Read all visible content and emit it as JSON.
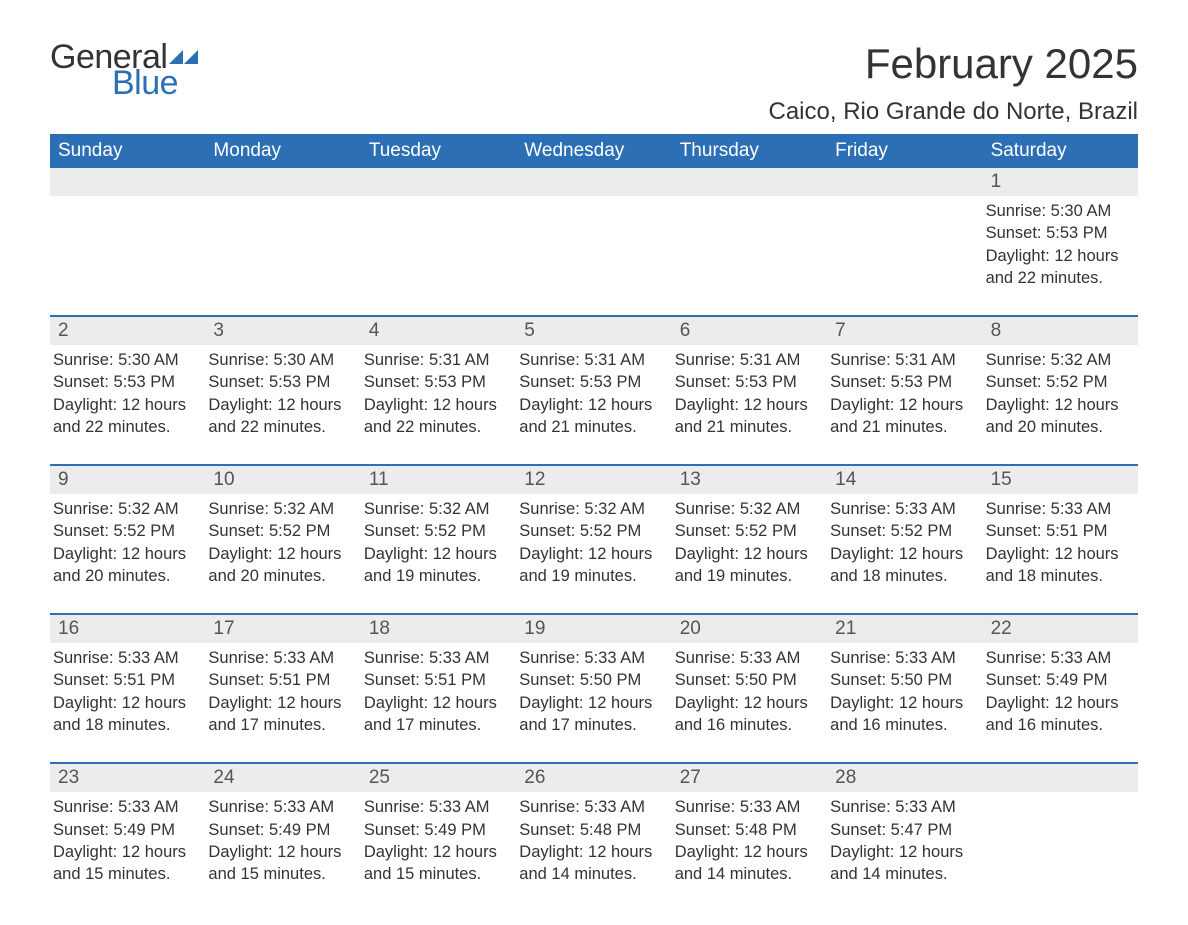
{
  "logo": {
    "general": "General",
    "blue": "Blue"
  },
  "header": {
    "month_title": "February 2025",
    "location": "Caico, Rio Grande do Norte, Brazil"
  },
  "calendar": {
    "columns": [
      "Sunday",
      "Monday",
      "Tuesday",
      "Wednesday",
      "Thursday",
      "Friday",
      "Saturday"
    ],
    "header_bg": "#2d6fb5",
    "header_fg": "#ffffff",
    "daynum_bg": "#ececec",
    "rule_color": "#2d6fb5",
    "weeks": [
      {
        "days": [
          {
            "num": "",
            "lines": []
          },
          {
            "num": "",
            "lines": []
          },
          {
            "num": "",
            "lines": []
          },
          {
            "num": "",
            "lines": []
          },
          {
            "num": "",
            "lines": []
          },
          {
            "num": "",
            "lines": []
          },
          {
            "num": "1",
            "lines": [
              "Sunrise: 5:30 AM",
              "Sunset: 5:53 PM",
              "Daylight: 12 hours and 22 minutes."
            ]
          }
        ]
      },
      {
        "days": [
          {
            "num": "2",
            "lines": [
              "Sunrise: 5:30 AM",
              "Sunset: 5:53 PM",
              "Daylight: 12 hours and 22 minutes."
            ]
          },
          {
            "num": "3",
            "lines": [
              "Sunrise: 5:30 AM",
              "Sunset: 5:53 PM",
              "Daylight: 12 hours and 22 minutes."
            ]
          },
          {
            "num": "4",
            "lines": [
              "Sunrise: 5:31 AM",
              "Sunset: 5:53 PM",
              "Daylight: 12 hours and 22 minutes."
            ]
          },
          {
            "num": "5",
            "lines": [
              "Sunrise: 5:31 AM",
              "Sunset: 5:53 PM",
              "Daylight: 12 hours and 21 minutes."
            ]
          },
          {
            "num": "6",
            "lines": [
              "Sunrise: 5:31 AM",
              "Sunset: 5:53 PM",
              "Daylight: 12 hours and 21 minutes."
            ]
          },
          {
            "num": "7",
            "lines": [
              "Sunrise: 5:31 AM",
              "Sunset: 5:53 PM",
              "Daylight: 12 hours and 21 minutes."
            ]
          },
          {
            "num": "8",
            "lines": [
              "Sunrise: 5:32 AM",
              "Sunset: 5:52 PM",
              "Daylight: 12 hours and 20 minutes."
            ]
          }
        ]
      },
      {
        "days": [
          {
            "num": "9",
            "lines": [
              "Sunrise: 5:32 AM",
              "Sunset: 5:52 PM",
              "Daylight: 12 hours and 20 minutes."
            ]
          },
          {
            "num": "10",
            "lines": [
              "Sunrise: 5:32 AM",
              "Sunset: 5:52 PM",
              "Daylight: 12 hours and 20 minutes."
            ]
          },
          {
            "num": "11",
            "lines": [
              "Sunrise: 5:32 AM",
              "Sunset: 5:52 PM",
              "Daylight: 12 hours and 19 minutes."
            ]
          },
          {
            "num": "12",
            "lines": [
              "Sunrise: 5:32 AM",
              "Sunset: 5:52 PM",
              "Daylight: 12 hours and 19 minutes."
            ]
          },
          {
            "num": "13",
            "lines": [
              "Sunrise: 5:32 AM",
              "Sunset: 5:52 PM",
              "Daylight: 12 hours and 19 minutes."
            ]
          },
          {
            "num": "14",
            "lines": [
              "Sunrise: 5:33 AM",
              "Sunset: 5:52 PM",
              "Daylight: 12 hours and 18 minutes."
            ]
          },
          {
            "num": "15",
            "lines": [
              "Sunrise: 5:33 AM",
              "Sunset: 5:51 PM",
              "Daylight: 12 hours and 18 minutes."
            ]
          }
        ]
      },
      {
        "days": [
          {
            "num": "16",
            "lines": [
              "Sunrise: 5:33 AM",
              "Sunset: 5:51 PM",
              "Daylight: 12 hours and 18 minutes."
            ]
          },
          {
            "num": "17",
            "lines": [
              "Sunrise: 5:33 AM",
              "Sunset: 5:51 PM",
              "Daylight: 12 hours and 17 minutes."
            ]
          },
          {
            "num": "18",
            "lines": [
              "Sunrise: 5:33 AM",
              "Sunset: 5:51 PM",
              "Daylight: 12 hours and 17 minutes."
            ]
          },
          {
            "num": "19",
            "lines": [
              "Sunrise: 5:33 AM",
              "Sunset: 5:50 PM",
              "Daylight: 12 hours and 17 minutes."
            ]
          },
          {
            "num": "20",
            "lines": [
              "Sunrise: 5:33 AM",
              "Sunset: 5:50 PM",
              "Daylight: 12 hours and 16 minutes."
            ]
          },
          {
            "num": "21",
            "lines": [
              "Sunrise: 5:33 AM",
              "Sunset: 5:50 PM",
              "Daylight: 12 hours and 16 minutes."
            ]
          },
          {
            "num": "22",
            "lines": [
              "Sunrise: 5:33 AM",
              "Sunset: 5:49 PM",
              "Daylight: 12 hours and 16 minutes."
            ]
          }
        ]
      },
      {
        "days": [
          {
            "num": "23",
            "lines": [
              "Sunrise: 5:33 AM",
              "Sunset: 5:49 PM",
              "Daylight: 12 hours and 15 minutes."
            ]
          },
          {
            "num": "24",
            "lines": [
              "Sunrise: 5:33 AM",
              "Sunset: 5:49 PM",
              "Daylight: 12 hours and 15 minutes."
            ]
          },
          {
            "num": "25",
            "lines": [
              "Sunrise: 5:33 AM",
              "Sunset: 5:49 PM",
              "Daylight: 12 hours and 15 minutes."
            ]
          },
          {
            "num": "26",
            "lines": [
              "Sunrise: 5:33 AM",
              "Sunset: 5:48 PM",
              "Daylight: 12 hours and 14 minutes."
            ]
          },
          {
            "num": "27",
            "lines": [
              "Sunrise: 5:33 AM",
              "Sunset: 5:48 PM",
              "Daylight: 12 hours and 14 minutes."
            ]
          },
          {
            "num": "28",
            "lines": [
              "Sunrise: 5:33 AM",
              "Sunset: 5:47 PM",
              "Daylight: 12 hours and 14 minutes."
            ]
          },
          {
            "num": "",
            "lines": []
          }
        ]
      }
    ]
  }
}
